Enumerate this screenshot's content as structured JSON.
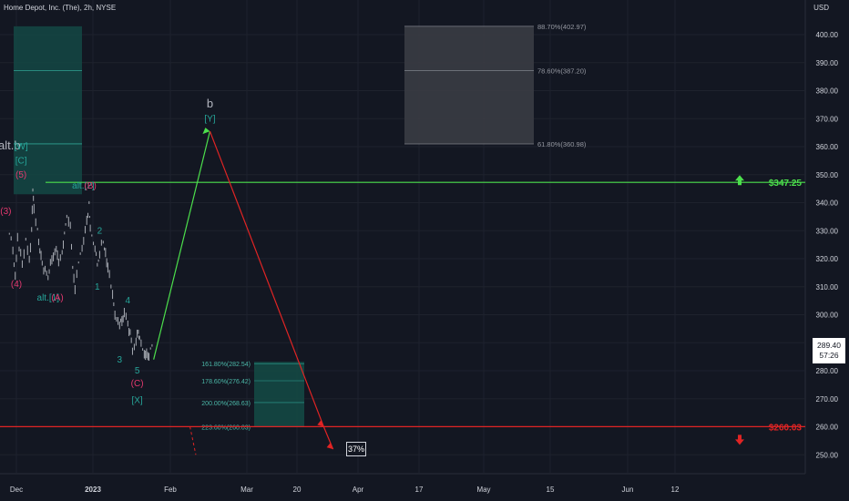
{
  "header": {
    "symbol": "Home Depot, Inc. (The), 2h, NYSE",
    "currency": "USD"
  },
  "current_price": {
    "value": "289.40",
    "timer": "57:26"
  },
  "probability_label": "37%",
  "colors": {
    "background": "#131722",
    "grid": "#1e222d",
    "text": "#d1d4dc",
    "candles": "#a9adb5",
    "green_arrow": "#4ce04c",
    "red_arrow": "#e02424",
    "teal": "#26a69a",
    "magenta": "#e53970",
    "zone_teal": "#144844",
    "zone_gray": "#3a3c44"
  },
  "chart_data": {
    "type": "line",
    "title": "Home Depot, Inc. (The), 2h, NYSE",
    "y_unit": "USD",
    "ylim": [
      245,
      410
    ],
    "y_ticks": [
      "400.00",
      "390.00",
      "380.00",
      "370.00",
      "360.00",
      "350.00",
      "340.00",
      "330.00",
      "320.00",
      "310.00",
      "300.00",
      "290.00",
      "280.00",
      "270.00",
      "260.00",
      "250.00"
    ],
    "x_ticks": [
      "Dec",
      "2023",
      "Feb",
      "Mar",
      "20",
      "Apr",
      "17",
      "May",
      "15",
      "Jun",
      "12"
    ],
    "price_path": [
      [
        "2022-11-25",
        330
      ],
      [
        "2022-11-28",
        323
      ],
      [
        "2022-11-30",
        314
      ],
      [
        "2022-12-02",
        327
      ],
      [
        "2022-12-06",
        318
      ],
      [
        "2022-12-09",
        327
      ],
      [
        "2022-12-12",
        320
      ],
      [
        "2022-12-14",
        330
      ],
      [
        "2022-12-15",
        344
      ],
      [
        "2022-12-16",
        338
      ],
      [
        "2022-12-19",
        330
      ],
      [
        "2022-12-21",
        322
      ],
      [
        "2022-12-23",
        318
      ],
      [
        "2022-12-28",
        313
      ],
      [
        "2022-12-30",
        318
      ],
      [
        "2023-01-04",
        324
      ],
      [
        "2023-01-06",
        318
      ],
      [
        "2023-01-09",
        322
      ],
      [
        "2023-01-11",
        330
      ],
      [
        "2023-01-13",
        334
      ],
      [
        "2023-01-16",
        331
      ],
      [
        "2023-01-18",
        318
      ],
      [
        "2023-01-20",
        310
      ],
      [
        "2023-01-23",
        318
      ],
      [
        "2023-01-26",
        323
      ],
      [
        "2023-01-30",
        333
      ],
      [
        "2023-02-01",
        340
      ],
      [
        "2023-02-02",
        332
      ],
      [
        "2023-02-06",
        324
      ],
      [
        "2023-02-08",
        318
      ],
      [
        "2023-02-10",
        322
      ],
      [
        "2023-02-13",
        327
      ],
      [
        "2023-02-15",
        321
      ],
      [
        "2023-02-17",
        318
      ],
      [
        "2023-02-21",
        307
      ],
      [
        "2023-02-23",
        300
      ],
      [
        "2023-02-27",
        296
      ],
      [
        "2023-03-01",
        299
      ],
      [
        "2023-03-03",
        300
      ],
      [
        "2023-03-06",
        297
      ],
      [
        "2023-03-08",
        293
      ],
      [
        "2023-03-10",
        287
      ],
      [
        "2023-03-13",
        290
      ],
      [
        "2023-03-15",
        294
      ],
      [
        "2023-03-16",
        291
      ],
      [
        "2023-03-20",
        287
      ],
      [
        "2023-03-22",
        285
      ],
      [
        "2023-03-24",
        286
      ],
      [
        "2023-03-28",
        289
      ]
    ],
    "horizontal_lines": [
      {
        "label": "$347.25",
        "y": 347.25,
        "color": "#4ce04c"
      },
      {
        "label": "$260.03",
        "y": 260.03,
        "color": "#e02424"
      }
    ],
    "fib_levels_upper": [
      {
        "label": "88.70%(402.97)",
        "y": 402.97
      },
      {
        "label": "78.60%(387.20)",
        "y": 387.2
      },
      {
        "label": "61.80%(360.98)",
        "y": 360.98
      }
    ],
    "fib_levels_lower": [
      {
        "label": "161.80%(282.54)",
        "y": 282.54
      },
      {
        "label": "178.60%(276.42)",
        "y": 276.42
      },
      {
        "label": "200.00%(268.63)",
        "y": 268.63
      },
      {
        "label": "223.60%(260.03)",
        "y": 260.03
      }
    ],
    "upper_left_zone": {
      "y_top": 402.97,
      "y_bottom": 343.0,
      "mid_lines": [
        387.2,
        361.0
      ]
    },
    "projection_green": [
      [
        "2023-03-28",
        284
      ],
      [
        "2023-05-15",
        365.5
      ]
    ],
    "projection_red": [
      [
        "2023-05-15",
        365.5
      ],
      [
        "2023-08-20",
        260.03
      ],
      [
        "2023-08-28",
        252
      ]
    ],
    "projection_dashed": [
      [
        "2023-04-28",
        260.03
      ],
      [
        "2023-05-03",
        250
      ]
    ],
    "wave_labels": [
      {
        "text": "(3)",
        "color": "magenta",
        "x": "2022-11-22",
        "y": 336
      },
      {
        "text": "(4)",
        "color": "magenta",
        "x": "2022-12-01",
        "y": 310
      },
      {
        "text": "alt.b",
        "color": "gray",
        "x": "2022-11-25",
        "y": 359
      },
      {
        "text": "[W]",
        "color": "teal",
        "x": "2022-12-05",
        "y": 359
      },
      {
        "text": "[C]",
        "color": "teal",
        "x": "2022-12-05",
        "y": 354
      },
      {
        "text": "(5)",
        "color": "magenta",
        "x": "2022-12-05",
        "y": 349
      },
      {
        "text": "alt.[1]",
        "color": "teal",
        "x": "2022-12-28",
        "y": 305
      },
      {
        "text": "(A)",
        "color": "magenta",
        "x": "2023-01-05",
        "y": 305
      },
      {
        "text": "alt.[2]",
        "color": "teal",
        "x": "2023-01-27",
        "y": 345
      },
      {
        "text": "(B)",
        "color": "magenta",
        "x": "2023-02-02",
        "y": 345
      },
      {
        "text": "2",
        "color": "teal",
        "x": "2023-02-10",
        "y": 329
      },
      {
        "text": "1",
        "color": "teal",
        "x": "2023-02-08",
        "y": 309
      },
      {
        "text": "4",
        "color": "teal",
        "x": "2023-03-06",
        "y": 304
      },
      {
        "text": "3",
        "color": "teal",
        "x": "2023-02-27",
        "y": 283
      },
      {
        "text": "5",
        "color": "teal",
        "x": "2023-03-14",
        "y": 279
      },
      {
        "text": "(C)",
        "color": "magenta",
        "x": "2023-03-14",
        "y": 274.5
      },
      {
        "text": "[X]",
        "color": "teal",
        "x": "2023-03-14",
        "y": 268.5
      },
      {
        "text": "b",
        "color": "gray",
        "x": "2023-05-15",
        "y": 374
      },
      {
        "text": "[Y]",
        "color": "teal",
        "x": "2023-05-15",
        "y": 369
      }
    ]
  }
}
